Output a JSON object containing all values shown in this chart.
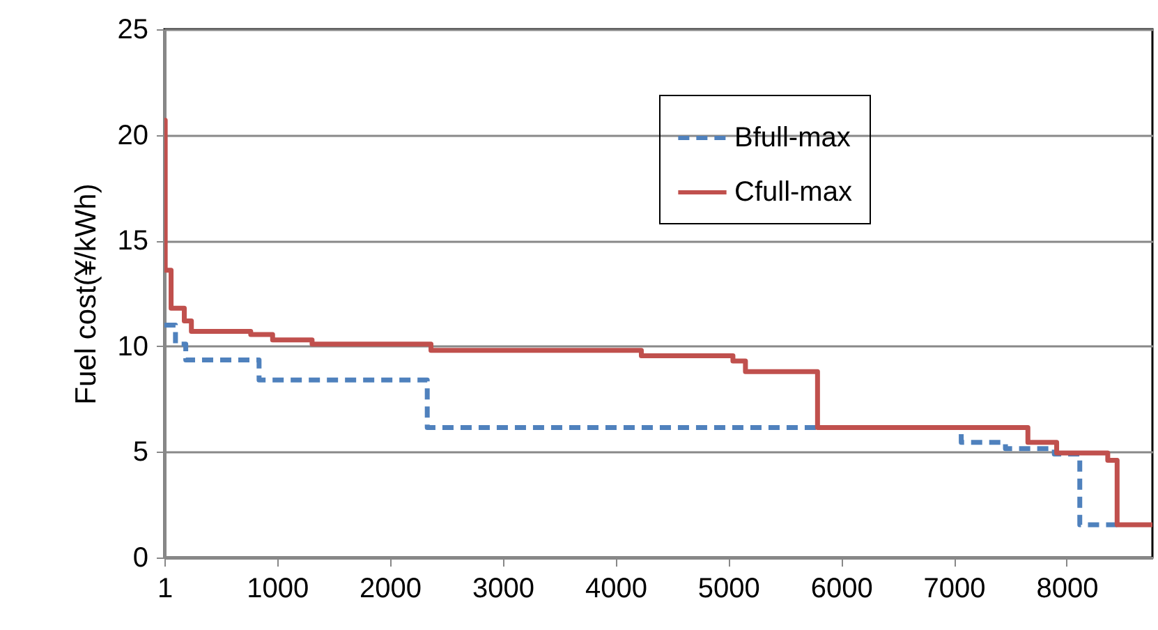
{
  "chart_data": {
    "type": "step",
    "ylabel": "Fuel cost(¥/kWh)",
    "xlim": [
      1,
      8760
    ],
    "xticks": [
      1,
      1000,
      2000,
      3000,
      4000,
      5000,
      6000,
      7000,
      8000
    ],
    "ylim": [
      0,
      25
    ],
    "yticks": [
      0,
      5,
      10,
      15,
      20,
      25
    ],
    "grid": "y",
    "legend": "top right",
    "series": [
      {
        "name": "Bfull-max",
        "color": "#4f81bd",
        "line_style": "dashed",
        "x": [
          1,
          99,
          190,
          840,
          2331,
          7065,
          7457,
          7890,
          8116,
          8447
        ],
        "values": [
          11.0,
          10.1,
          9.35,
          8.4,
          6.15,
          5.45,
          5.15,
          4.9,
          1.55,
          1.55
        ]
      },
      {
        "name": "Cfull-max",
        "color": "#c0504d",
        "line_style": "solid",
        "x": [
          1,
          8,
          60,
          177,
          240,
          766,
          960,
          1310,
          2364,
          4229,
          5041,
          5152,
          5791,
          7656,
          7911,
          8364,
          8447,
          8760
        ],
        "values": [
          20.7,
          13.6,
          11.8,
          11.2,
          10.7,
          10.55,
          10.3,
          10.1,
          9.8,
          9.55,
          9.3,
          8.8,
          6.15,
          5.45,
          4.95,
          4.6,
          1.55,
          1.55
        ]
      }
    ]
  }
}
